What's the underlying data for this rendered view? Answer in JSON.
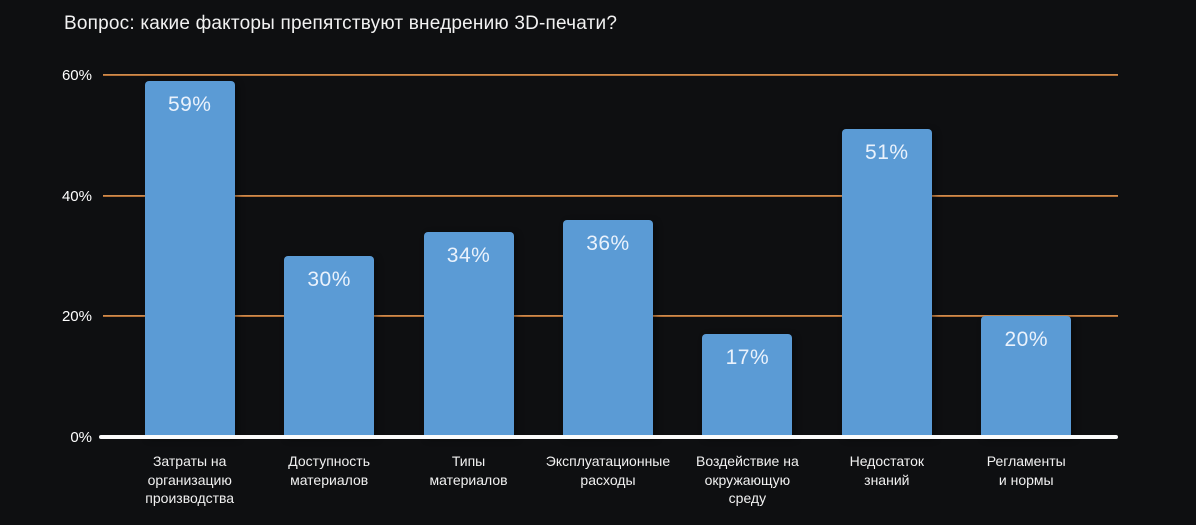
{
  "chart_data": {
    "type": "bar",
    "title": "Вопрос: какие факторы препятствуют внедрению 3D-печати?",
    "categories": [
      "Затраты на\nорганизацию\nпроизводства",
      "Доступность\nматериалов",
      "Типы\nматериалов",
      "Эксплуатационные\nрасходы",
      "Воздействие на\nокружающую\nсреду",
      "Недостаток\nзнаний",
      "Регламенты\nи нормы"
    ],
    "values": [
      59,
      30,
      34,
      36,
      17,
      51,
      20
    ],
    "value_labels": [
      "59%",
      "30%",
      "34%",
      "36%",
      "17%",
      "51%",
      "20%"
    ],
    "xlabel": "",
    "ylabel": "",
    "ylim": [
      0,
      60
    ],
    "yticks": [
      {
        "value": 0,
        "label": "0%"
      },
      {
        "value": 20,
        "label": "20%"
      },
      {
        "value": 40,
        "label": "40%"
      },
      {
        "value": 60,
        "label": "60%"
      }
    ],
    "grid": true,
    "legend": false,
    "colors": {
      "bar": "#5b9bd5",
      "bar_label_text": "#eaf2fc",
      "gridline": "#b96a2e",
      "axis_line": "#fbfbfb",
      "title_text": "#f2f2f2",
      "tick_text": "#ffffff",
      "category_text": "#f1f1f1",
      "background_center": "#2f3235",
      "background_edge": "#121416"
    }
  }
}
